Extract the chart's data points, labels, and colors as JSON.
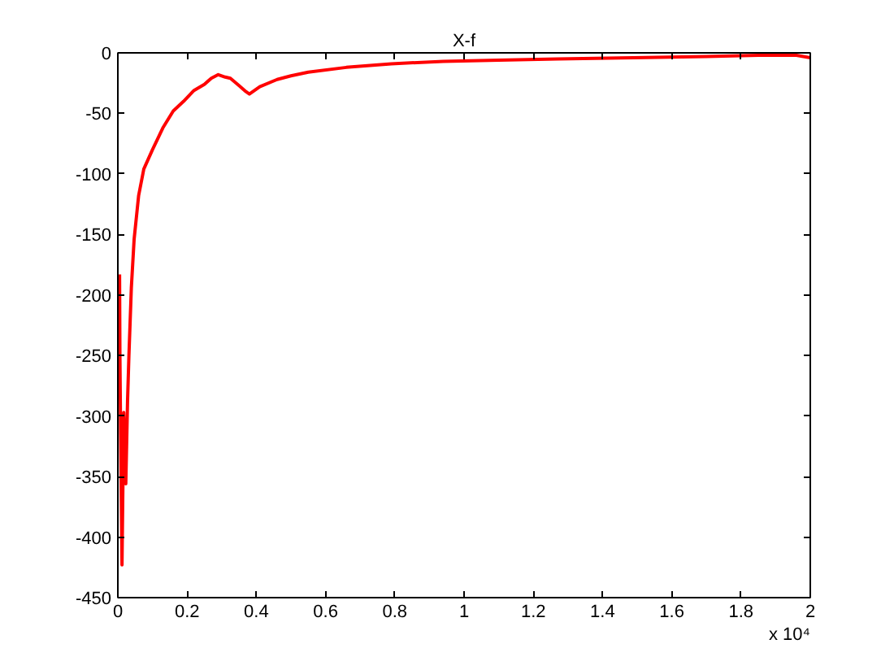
{
  "chart_data": {
    "type": "line",
    "title": "X-f",
    "annotations": [
      "x 10⁴"
    ],
    "x": [
      0.005,
      0.006,
      0.008,
      0.012,
      0.017,
      0.023,
      0.028,
      0.032,
      0.039,
      0.047,
      0.06,
      0.075,
      0.1,
      0.13,
      0.16,
      0.19,
      0.22,
      0.25,
      0.27,
      0.29,
      0.31,
      0.325,
      0.35,
      0.37,
      0.38,
      0.41,
      0.46,
      0.5,
      0.55,
      0.66,
      0.79,
      0.94,
      1.1,
      1.27,
      1.49,
      1.7,
      1.85,
      1.96,
      2.0
    ],
    "values": [
      -183,
      -250,
      -315,
      -423,
      -297,
      -356,
      -288,
      -250,
      -194,
      -154,
      -118,
      -96,
      -80,
      -62,
      -48,
      -40,
      -31,
      -26,
      -21,
      -18,
      -20,
      -21,
      -27,
      -32,
      -34,
      -28,
      -22,
      -19,
      -16,
      -12,
      -9,
      -7,
      -6,
      -5,
      -4,
      -3,
      -2,
      -2,
      -4
    ],
    "color": "#ff0000",
    "xlim": [
      0,
      2
    ],
    "ylim": [
      -450,
      0
    ],
    "xticks": [
      0,
      0.2,
      0.4,
      0.6,
      0.8,
      1,
      1.2,
      1.4,
      1.6,
      1.8,
      2
    ],
    "yticks": [
      -450,
      -400,
      -350,
      -300,
      -250,
      -200,
      -150,
      -100,
      -50,
      0
    ],
    "grid": false,
    "marker": "none",
    "line_style": "solid"
  }
}
